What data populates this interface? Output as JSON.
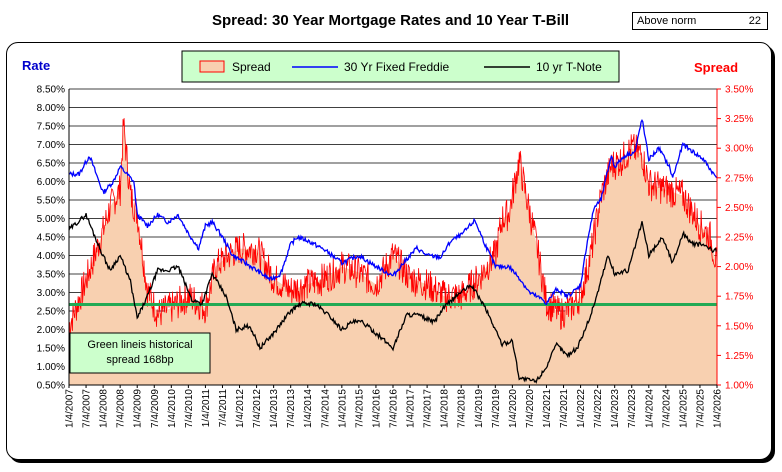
{
  "chart_data": {
    "type": "line",
    "title": "Spread:  30 Year Mortgage Rates and 10 Year T-Bill",
    "above_norm": {
      "label": "Above norm",
      "value": "22"
    },
    "left_axis_title": "Rate",
    "right_axis_title": "Spread",
    "left_ylim": [
      0.5,
      8.5
    ],
    "right_ylim": [
      1.0,
      3.5
    ],
    "left_ticks": [
      "0.50%",
      "1.00%",
      "1.50%",
      "2.00%",
      "2.50%",
      "3.00%",
      "3.50%",
      "4.00%",
      "4.50%",
      "5.00%",
      "5.50%",
      "6.00%",
      "6.50%",
      "7.00%",
      "7.50%",
      "8.00%",
      "8.50%"
    ],
    "right_ticks": [
      "1.00%",
      "1.25%",
      "1.50%",
      "1.75%",
      "2.00%",
      "2.25%",
      "2.50%",
      "2.75%",
      "3.00%",
      "3.25%",
      "3.50%"
    ],
    "x_ticks": [
      "1/4/2007",
      "7/4/2007",
      "1/4/2008",
      "7/4/2008",
      "1/4/2009",
      "7/4/2009",
      "1/4/2010",
      "7/4/2010",
      "1/4/2011",
      "7/4/2011",
      "1/4/2012",
      "7/4/2012",
      "1/4/2013",
      "7/4/2013",
      "1/4/2014",
      "7/4/2014",
      "1/4/2015",
      "7/4/2015",
      "1/4/2016",
      "7/4/2016",
      "1/4/2017",
      "7/4/2017",
      "1/4/2018",
      "7/4/2018",
      "1/4/2019",
      "7/4/2019",
      "1/4/2020",
      "7/4/2020",
      "1/4/2021",
      "7/4/2021",
      "1/4/2022",
      "7/4/2022",
      "1/4/2023",
      "7/4/2023",
      "1/4/2024",
      "7/4/2024",
      "1/4/2025",
      "7/4/2025",
      "1/4/2026"
    ],
    "x_range": [
      2007.0,
      2026.0
    ],
    "legend": [
      "Spread",
      "30 Yr Fixed Freddie",
      "10 yr T-Note"
    ],
    "legend_position": "top-center",
    "annotation": {
      "line1": "Green lineis historical",
      "line2": "spread 168bp"
    },
    "historical_spread": 1.68,
    "colors": {
      "spread_fill": "#f8d0b0",
      "spread_line": "#ff0000",
      "mortgage": "#0000ff",
      "tnote": "#000000",
      "historical": "#22aa55",
      "rate_title": "#0000cc",
      "spread_title": "#ff0000",
      "legend_bg": "#ccffcc"
    },
    "series": [
      {
        "name": "30 Yr Fixed Freddie",
        "x": [
          2007.0,
          2007.3,
          2007.6,
          2008.0,
          2008.3,
          2008.5,
          2008.9,
          2009.0,
          2009.3,
          2009.6,
          2009.9,
          2010.2,
          2010.5,
          2010.8,
          2011.0,
          2011.2,
          2011.5,
          2011.8,
          2012.0,
          2012.5,
          2012.9,
          2013.2,
          2013.5,
          2013.7,
          2014.0,
          2014.5,
          2015.0,
          2015.5,
          2016.0,
          2016.5,
          2016.9,
          2017.2,
          2017.5,
          2017.9,
          2018.2,
          2018.5,
          2018.9,
          2019.2,
          2019.5,
          2019.9,
          2020.2,
          2020.5,
          2020.9,
          2021.0,
          2021.3,
          2021.6,
          2021.9,
          2022.0,
          2022.2,
          2022.4,
          2022.6,
          2022.9,
          2023.0,
          2023.3,
          2023.6,
          2023.8,
          2024.0,
          2024.3,
          2024.6,
          2024.7,
          2025.0,
          2025.3,
          2025.6,
          2025.9,
          2026.0
        ],
        "values": [
          6.2,
          6.2,
          6.7,
          5.7,
          6.0,
          6.4,
          6.0,
          5.1,
          4.8,
          5.1,
          4.9,
          5.1,
          4.6,
          4.2,
          4.8,
          4.9,
          4.5,
          4.0,
          3.9,
          3.6,
          3.35,
          3.5,
          4.3,
          4.5,
          4.4,
          4.15,
          3.8,
          4.0,
          3.7,
          3.45,
          3.9,
          4.2,
          4.0,
          3.95,
          4.4,
          4.55,
          4.95,
          4.3,
          3.7,
          3.7,
          3.4,
          3.0,
          2.8,
          2.7,
          3.1,
          2.9,
          3.1,
          3.2,
          4.4,
          5.3,
          5.5,
          6.7,
          6.4,
          6.7,
          6.8,
          7.7,
          6.6,
          6.9,
          6.4,
          6.1,
          7.0,
          6.8,
          6.6,
          6.2,
          6.1
        ]
      },
      {
        "name": "10 yr T-Note",
        "x": [
          2007.0,
          2007.5,
          2007.9,
          2008.2,
          2008.5,
          2008.8,
          2009.0,
          2009.3,
          2009.6,
          2009.9,
          2010.2,
          2010.6,
          2010.9,
          2011.2,
          2011.6,
          2011.9,
          2012.3,
          2012.6,
          2013.0,
          2013.5,
          2013.8,
          2014.2,
          2014.6,
          2015.0,
          2015.3,
          2015.6,
          2016.0,
          2016.5,
          2016.9,
          2017.2,
          2017.7,
          2018.0,
          2018.4,
          2018.8,
          2019.2,
          2019.5,
          2019.7,
          2020.0,
          2020.2,
          2020.4,
          2020.7,
          2021.0,
          2021.3,
          2021.6,
          2021.9,
          2022.0,
          2022.3,
          2022.5,
          2022.8,
          2023.0,
          2023.4,
          2023.8,
          2024.0,
          2024.4,
          2024.7,
          2025.0,
          2025.3,
          2025.6,
          2025.9,
          2026.0
        ],
        "values": [
          4.7,
          5.1,
          4.2,
          3.6,
          4.0,
          3.3,
          2.3,
          2.9,
          3.6,
          3.6,
          3.7,
          2.8,
          2.7,
          3.5,
          2.9,
          2.0,
          2.1,
          1.5,
          1.9,
          2.5,
          2.7,
          2.7,
          2.4,
          2.0,
          2.2,
          2.2,
          1.9,
          1.5,
          2.4,
          2.4,
          2.2,
          2.6,
          2.95,
          3.2,
          2.6,
          2.0,
          1.6,
          1.7,
          0.7,
          0.65,
          0.6,
          1.0,
          1.6,
          1.3,
          1.5,
          1.7,
          2.4,
          3.0,
          4.0,
          3.5,
          3.6,
          4.9,
          4.0,
          4.5,
          3.8,
          4.6,
          4.3,
          4.3,
          4.1,
          4.2
        ]
      },
      {
        "name": "Spread",
        "axis": "right",
        "x": [
          2007.0,
          2007.4,
          2007.7,
          2008.0,
          2008.2,
          2008.5,
          2008.6,
          2008.8,
          2009.0,
          2009.3,
          2009.6,
          2010.0,
          2010.5,
          2011.0,
          2011.3,
          2011.7,
          2012.0,
          2012.5,
          2013.0,
          2013.5,
          2014.0,
          2014.5,
          2015.0,
          2015.5,
          2016.0,
          2016.5,
          2017.0,
          2017.5,
          2018.0,
          2018.5,
          2019.0,
          2019.5,
          2019.7,
          2019.9,
          2020.2,
          2020.4,
          2020.7,
          2021.0,
          2021.4,
          2021.7,
          2022.0,
          2022.3,
          2022.6,
          2022.9,
          2023.2,
          2023.5,
          2023.8,
          2024.0,
          2024.5,
          2025.0,
          2025.5,
          2025.8,
          2026.0
        ],
        "values": [
          1.5,
          1.8,
          2.05,
          2.3,
          2.5,
          2.65,
          3.2,
          2.6,
          2.45,
          1.8,
          1.6,
          1.65,
          1.75,
          1.65,
          2.0,
          2.1,
          2.15,
          2.15,
          1.9,
          1.8,
          1.85,
          1.9,
          2.0,
          1.95,
          1.85,
          2.1,
          1.9,
          1.85,
          1.75,
          1.75,
          1.9,
          2.1,
          2.4,
          2.45,
          2.9,
          2.6,
          2.2,
          1.7,
          1.6,
          1.65,
          1.75,
          2.1,
          2.6,
          2.85,
          2.9,
          3.0,
          2.95,
          2.7,
          2.65,
          2.6,
          2.35,
          2.25,
          2.0
        ]
      }
    ]
  }
}
